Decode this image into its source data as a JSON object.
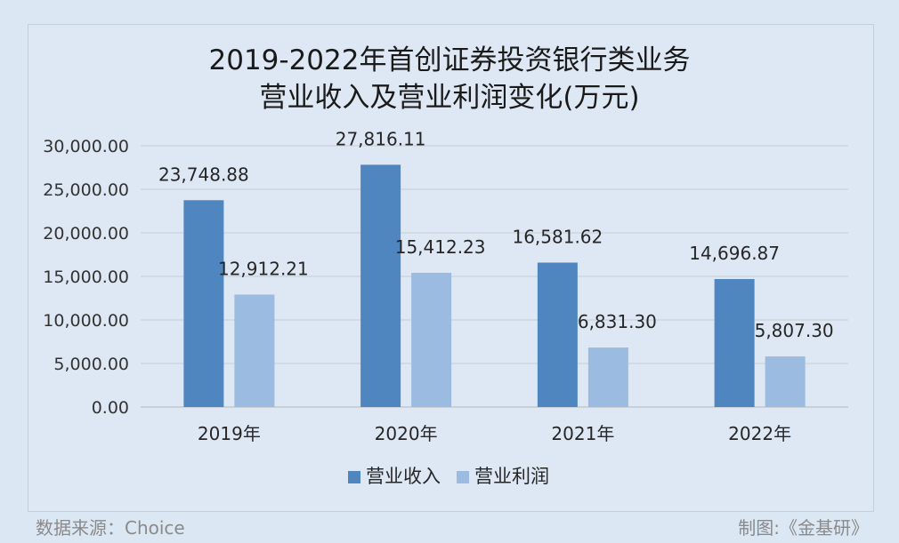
{
  "chart_data": {
    "type": "bar",
    "title_line1": "2019-2022年首创证券投资银行类业务",
    "title_line2": "营业收入及营业利润变化(万元)",
    "categories": [
      "2019年",
      "2020年",
      "2021年",
      "2022年"
    ],
    "series": [
      {
        "name": "营业收入",
        "color": "#4f86bf",
        "values": [
          23748.88,
          27816.11,
          16581.62,
          14696.87
        ],
        "labels": [
          "23,748.88",
          "27,816.11",
          "16,581.62",
          "14,696.87"
        ]
      },
      {
        "name": "营业利润",
        "color": "#9bbbe1",
        "values": [
          12912.21,
          15412.23,
          6831.3,
          5807.3
        ],
        "labels": [
          "12,912.21",
          "15,412.23",
          "6,831.30",
          "5,807.30"
        ]
      }
    ],
    "ylim": [
      0,
      30000
    ],
    "yticks": [
      0,
      5000,
      10000,
      15000,
      20000,
      25000,
      30000
    ],
    "ytick_labels": [
      "0.00",
      "5,000.00",
      "10,000.00",
      "15,000.00",
      "20,000.00",
      "25,000.00",
      "30,000.00"
    ],
    "grid": true,
    "legend_position": "bottom"
  },
  "footer": {
    "source": "数据来源：Choice",
    "credit": "制图:《金基研》"
  }
}
